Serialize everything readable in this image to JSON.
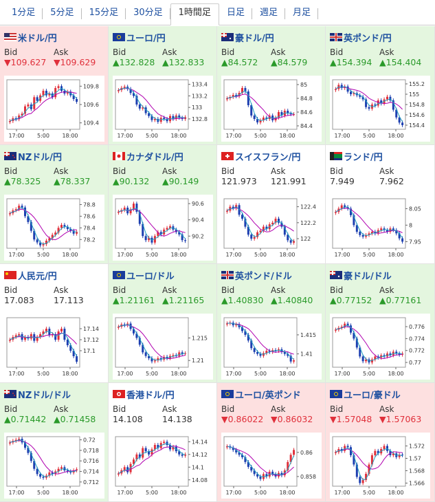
{
  "tabs": [
    {
      "label": "1分足",
      "active": false
    },
    {
      "label": "5分足",
      "active": false
    },
    {
      "label": "15分足",
      "active": false
    },
    {
      "label": "30分足",
      "active": false
    },
    {
      "label": "1時間足",
      "active": true
    },
    {
      "label": "日足",
      "active": false
    },
    {
      "label": "週足",
      "active": false
    },
    {
      "label": "月足",
      "active": false
    }
  ],
  "colors": {
    "up": "#2a9a2a",
    "down": "#e0303b",
    "link": "#1e50a0",
    "ma1": "#b000b0",
    "ma2": "#20a0c0"
  },
  "bid_label": "Bid",
  "ask_label": "Ask",
  "pairs": [
    {
      "name": "米ドル/円",
      "flag": "us",
      "trend": "down",
      "arrow": "▼",
      "bid": "109.627",
      "ask": "109.629",
      "chart_data": {
        "type": "candlestick",
        "x_ticks": [
          "17:00",
          "5:00",
          "18:00"
        ],
        "y_ticks": [
          "109.8",
          "109.6",
          "109.4"
        ],
        "ylim": [
          109.33,
          109.87
        ],
        "close": [
          109.42,
          109.45,
          109.44,
          109.48,
          109.5,
          109.58,
          109.6,
          109.55,
          109.68,
          109.64,
          109.7,
          109.75,
          109.7,
          109.72,
          109.68,
          109.78,
          109.8,
          109.75,
          109.72,
          109.74,
          109.7,
          109.66,
          109.63
        ]
      }
    },
    {
      "name": "ユーロ/円",
      "flag": "eu",
      "trend": "up",
      "arrow": "▲",
      "bid": "132.828",
      "ask": "132.833",
      "chart_data": {
        "type": "candlestick",
        "x_ticks": [
          "17:00",
          "5:00",
          "18:00"
        ],
        "y_ticks": [
          "133.4",
          "133.2",
          "133",
          "132.8"
        ],
        "ylim": [
          132.62,
          133.48
        ],
        "close": [
          133.3,
          133.34,
          133.36,
          133.32,
          133.25,
          133.2,
          133.05,
          132.98,
          133.0,
          132.9,
          132.85,
          132.78,
          132.8,
          132.75,
          132.82,
          132.8,
          132.76,
          132.85,
          132.8,
          132.86,
          132.82,
          132.8,
          132.83
        ]
      }
    },
    {
      "name": "豪ドル/円",
      "flag": "au",
      "trend": "up",
      "arrow": "▲",
      "bid": "84.572",
      "ask": "84.579",
      "chart_data": {
        "type": "candlestick",
        "x_ticks": [
          "17:00",
          "5:00",
          "18:00"
        ],
        "y_ticks": [
          "85",
          "84.8",
          "84.6",
          "84.4"
        ],
        "ylim": [
          84.35,
          85.07
        ],
        "close": [
          84.8,
          84.82,
          84.85,
          84.83,
          84.88,
          84.95,
          84.9,
          84.7,
          84.55,
          84.5,
          84.45,
          84.48,
          84.52,
          84.5,
          84.55,
          84.48,
          84.52,
          84.6,
          84.55,
          84.62,
          84.58,
          84.57,
          84.57
        ]
      }
    },
    {
      "name": "英ポンド/円",
      "flag": "uk",
      "trend": "up",
      "arrow": "▲",
      "bid": "154.394",
      "ask": "154.404",
      "chart_data": {
        "type": "candlestick",
        "x_ticks": [
          "17:00",
          "5:00",
          "18:00"
        ],
        "y_ticks": [
          "155.2",
          "155",
          "154.8",
          "154.6",
          "154.4"
        ],
        "ylim": [
          154.32,
          155.28
        ],
        "close": [
          155.1,
          155.18,
          155.12,
          155.15,
          155.05,
          155.0,
          155.02,
          154.98,
          154.95,
          154.9,
          154.75,
          154.72,
          154.8,
          154.78,
          154.88,
          154.82,
          154.9,
          154.95,
          154.88,
          154.7,
          154.55,
          154.45,
          154.4
        ]
      }
    },
    {
      "name": "NZドル/円",
      "flag": "nz",
      "trend": "up",
      "arrow": "▲",
      "bid": "78.325",
      "ask": "78.337",
      "chart_data": {
        "type": "candlestick",
        "x_ticks": [
          "17:00",
          "5:00",
          "18:00"
        ],
        "y_ticks": [
          "78.8",
          "78.6",
          "78.4",
          "78.2"
        ],
        "ylim": [
          78.05,
          78.9
        ],
        "close": [
          78.65,
          78.7,
          78.72,
          78.78,
          78.75,
          78.6,
          78.5,
          78.35,
          78.2,
          78.15,
          78.1,
          78.12,
          78.18,
          78.22,
          78.28,
          78.32,
          78.4,
          78.45,
          78.42,
          78.38,
          78.35,
          78.3,
          78.33
        ]
      }
    },
    {
      "name": "カナダドル/円",
      "flag": "ca",
      "trend": "up",
      "arrow": "▲",
      "bid": "90.132",
      "ask": "90.149",
      "chart_data": {
        "type": "candlestick",
        "x_ticks": [
          "17:00",
          "5:00",
          "18:00"
        ],
        "y_ticks": [
          "90.6",
          "90.4",
          "90.2"
        ],
        "ylim": [
          90.05,
          90.66
        ],
        "close": [
          90.5,
          90.52,
          90.55,
          90.48,
          90.53,
          90.6,
          90.5,
          90.35,
          90.2,
          90.15,
          90.18,
          90.12,
          90.2,
          90.25,
          90.22,
          90.28,
          90.3,
          90.32,
          90.28,
          90.25,
          90.22,
          90.15,
          90.14
        ]
      }
    },
    {
      "name": "スイスフラン/円",
      "flag": "ch",
      "trend": "flat",
      "arrow": "",
      "bid": "121.973",
      "ask": "121.991",
      "chart_data": {
        "type": "candlestick",
        "x_ticks": [
          "17:00",
          "5:00",
          "18:00"
        ],
        "y_ticks": [
          "122.4",
          "122.2",
          "122"
        ],
        "ylim": [
          121.88,
          122.5
        ],
        "close": [
          122.35,
          122.4,
          122.38,
          122.42,
          122.3,
          122.25,
          122.15,
          122.05,
          122.0,
          122.02,
          122.08,
          122.1,
          122.15,
          122.12,
          122.18,
          122.2,
          122.25,
          122.2,
          122.15,
          122.05,
          121.98,
          121.95,
          121.97
        ]
      }
    },
    {
      "name": "ランド/円",
      "flag": "za",
      "trend": "flat",
      "arrow": "",
      "bid": "7.949",
      "ask": "7.962",
      "chart_data": {
        "type": "candlestick",
        "x_ticks": [
          "17:00",
          "5:00",
          "18:00"
        ],
        "y_ticks": [
          "8.05",
          "8",
          "7.95"
        ],
        "ylim": [
          7.93,
          8.08
        ],
        "close": [
          8.04,
          8.05,
          8.06,
          8.055,
          8.05,
          8.03,
          8.0,
          7.98,
          7.97,
          7.965,
          7.97,
          7.975,
          7.98,
          7.975,
          7.985,
          7.99,
          7.985,
          7.98,
          7.99,
          7.985,
          7.975,
          7.96,
          7.95
        ]
      }
    },
    {
      "name": "人民元/円",
      "flag": "cn",
      "trend": "flat",
      "arrow": "",
      "bid": "17.083",
      "ask": "17.113",
      "chart_data": {
        "type": "candlestick",
        "x_ticks": [
          "17:00",
          "5:00",
          "18:00"
        ],
        "y_ticks": [
          "17.14",
          "17.12",
          "17.1"
        ],
        "ylim": [
          17.07,
          17.16
        ],
        "close": [
          17.12,
          17.125,
          17.128,
          17.13,
          17.12,
          17.125,
          17.122,
          17.13,
          17.118,
          17.125,
          17.13,
          17.135,
          17.14,
          17.128,
          17.13,
          17.12,
          17.135,
          17.14,
          17.12,
          17.11,
          17.1,
          17.09,
          17.08
        ]
      }
    },
    {
      "name": "ユーロ/ドル",
      "flag": "eu",
      "trend": "up",
      "arrow": "▲",
      "bid": "1.21161",
      "ask": "1.21165",
      "chart_data": {
        "type": "candlestick",
        "x_ticks": [
          "17:00",
          "5:00",
          "18:00"
        ],
        "y_ticks": [
          "1.215",
          "1.21"
        ],
        "ylim": [
          1.2085,
          1.2195
        ],
        "close": [
          1.2175,
          1.218,
          1.2178,
          1.2182,
          1.217,
          1.216,
          1.215,
          1.2135,
          1.2118,
          1.211,
          1.2105,
          1.2098,
          1.21,
          1.2105,
          1.2102,
          1.2108,
          1.2105,
          1.211,
          1.2112,
          1.211,
          1.2118,
          1.2115,
          1.2116
        ]
      }
    },
    {
      "name": "英ポンド/ドル",
      "flag": "uk",
      "trend": "up",
      "arrow": "▲",
      "bid": "1.40830",
      "ask": "1.40840",
      "chart_data": {
        "type": "candlestick",
        "x_ticks": [
          "17:00",
          "5:00",
          "18:00"
        ],
        "y_ticks": [
          "1.415",
          "1.41"
        ],
        "ylim": [
          1.4065,
          1.4195
        ],
        "close": [
          1.418,
          1.4182,
          1.4175,
          1.4178,
          1.417,
          1.416,
          1.415,
          1.4135,
          1.4115,
          1.4105,
          1.41,
          1.4095,
          1.4102,
          1.4108,
          1.4105,
          1.411,
          1.4108,
          1.4112,
          1.4105,
          1.41,
          1.4095,
          1.408,
          1.4083
        ]
      }
    },
    {
      "name": "豪ドル/ドル",
      "flag": "au",
      "trend": "up",
      "arrow": "▲",
      "bid": "0.77152",
      "ask": "0.77161",
      "chart_data": {
        "type": "candlestick",
        "x_ticks": [
          "17:00",
          "5:00",
          "18:00"
        ],
        "y_ticks": [
          "0.776",
          "0.774",
          "0.772",
          "0.77"
        ],
        "ylim": [
          0.7692,
          0.7775
        ],
        "close": [
          0.7755,
          0.7758,
          0.776,
          0.7765,
          0.7762,
          0.775,
          0.774,
          0.7725,
          0.771,
          0.7702,
          0.7705,
          0.77,
          0.7705,
          0.771,
          0.7708,
          0.7712,
          0.771,
          0.7715,
          0.7712,
          0.7718,
          0.7715,
          0.7713,
          0.7715
        ]
      }
    },
    {
      "name": "NZドル/ドル",
      "flag": "nz",
      "trend": "up",
      "arrow": "▲",
      "bid": "0.71442",
      "ask": "0.71458",
      "chart_data": {
        "type": "candlestick",
        "x_ticks": [
          "17:00",
          "5:00",
          "18:00"
        ],
        "y_ticks": [
          "0.72",
          "0.718",
          "0.716",
          "0.714",
          "0.712"
        ],
        "ylim": [
          0.7112,
          0.7206
        ],
        "close": [
          0.7195,
          0.7198,
          0.72,
          0.7202,
          0.7195,
          0.7185,
          0.7175,
          0.716,
          0.7145,
          0.7135,
          0.713,
          0.7128,
          0.7132,
          0.7138,
          0.7135,
          0.714,
          0.7145,
          0.7148,
          0.7142,
          0.714,
          0.7138,
          0.7142,
          0.7144
        ]
      }
    },
    {
      "name": "香港ドル/円",
      "flag": "hk",
      "trend": "flat",
      "arrow": "",
      "bid": "14.108",
      "ask": "14.138",
      "chart_data": {
        "type": "candlestick",
        "x_ticks": [
          "17:00",
          "5:00",
          "18:00"
        ],
        "y_ticks": [
          "14.14",
          "14.12",
          "14.1",
          "14.08"
        ],
        "ylim": [
          14.07,
          14.148
        ],
        "close": [
          14.09,
          14.095,
          14.1,
          14.092,
          14.105,
          14.112,
          14.12,
          14.115,
          14.13,
          14.125,
          14.12,
          14.128,
          14.135,
          14.13,
          14.138,
          14.14,
          14.135,
          14.128,
          14.132,
          14.125,
          14.12,
          14.118,
          14.12
        ]
      }
    },
    {
      "name": "ユーロ/英ポンド",
      "flag": "eu",
      "trend": "down",
      "arrow": "▼",
      "bid": "0.86022",
      "ask": "0.86032",
      "chart_data": {
        "type": "candlestick",
        "x_ticks": [
          "17:00",
          "5:00",
          "18:00"
        ],
        "y_ticks": [
          "0.86",
          "0.858"
        ],
        "ylim": [
          0.8572,
          0.8613
        ],
        "close": [
          0.8605,
          0.8604,
          0.8602,
          0.86,
          0.8598,
          0.8596,
          0.8592,
          0.8588,
          0.8585,
          0.8582,
          0.858,
          0.8578,
          0.8582,
          0.858,
          0.8584,
          0.8582,
          0.858,
          0.8583,
          0.8581,
          0.8585,
          0.8592,
          0.8598,
          0.8602
        ]
      }
    },
    {
      "name": "ユーロ/豪ドル",
      "flag": "eu",
      "trend": "down",
      "arrow": "▼",
      "bid": "1.57048",
      "ask": "1.57063",
      "chart_data": {
        "type": "candlestick",
        "x_ticks": [
          "17:00",
          "5:00",
          "18:00"
        ],
        "y_ticks": [
          "1.572",
          "1.57",
          "1.568",
          "1.566"
        ],
        "ylim": [
          1.5655,
          1.5735
        ],
        "close": [
          1.571,
          1.5715,
          1.5712,
          1.572,
          1.5718,
          1.5705,
          1.569,
          1.567,
          1.566,
          1.5665,
          1.5675,
          1.569,
          1.5705,
          1.5712,
          1.5708,
          1.5715,
          1.572,
          1.5712,
          1.5705,
          1.5708,
          1.5702,
          1.5706,
          1.5705
        ]
      }
    }
  ]
}
